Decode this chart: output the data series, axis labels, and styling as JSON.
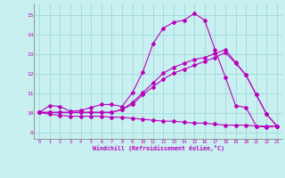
{
  "title": "",
  "xlabel": "Windchill (Refroidissement éolien,°C)",
  "ylabel": "",
  "bg_color": "#c8f0f0",
  "line_color": "#bb00bb",
  "grid_color": "#a0d8d8",
  "xlim": [
    -0.5,
    23.5
  ],
  "ylim": [
    8.7,
    15.6
  ],
  "xticks": [
    0,
    1,
    2,
    3,
    4,
    5,
    6,
    7,
    8,
    9,
    10,
    11,
    12,
    13,
    14,
    15,
    16,
    17,
    18,
    19,
    20,
    21,
    22,
    23
  ],
  "yticks": [
    9,
    10,
    11,
    12,
    13,
    14,
    15
  ],
  "line1_x": [
    0,
    1,
    2,
    3,
    4,
    5,
    6,
    7,
    8,
    9,
    10,
    11,
    12,
    13,
    14,
    15,
    16,
    17,
    18,
    19,
    20,
    21,
    22,
    23
  ],
  "line1_y": [
    10.05,
    10.4,
    10.35,
    10.1,
    10.15,
    10.3,
    10.45,
    10.45,
    10.35,
    11.05,
    12.1,
    13.55,
    14.35,
    14.65,
    14.75,
    15.1,
    14.75,
    13.25,
    11.85,
    10.4,
    10.3,
    9.35,
    9.3,
    9.35
  ],
  "line2_x": [
    0,
    1,
    2,
    3,
    4,
    5,
    6,
    7,
    8,
    9,
    10,
    11,
    12,
    13,
    14,
    15,
    16,
    17,
    18,
    19,
    20,
    21,
    22,
    23
  ],
  "line2_y": [
    10.05,
    10.05,
    10.05,
    10.05,
    10.05,
    10.05,
    10.05,
    10.05,
    10.2,
    10.55,
    11.05,
    11.55,
    12.05,
    12.35,
    12.55,
    12.75,
    12.85,
    13.05,
    13.25,
    12.6,
    11.95,
    10.95,
    9.95,
    9.35
  ],
  "line3_x": [
    0,
    1,
    2,
    3,
    4,
    5,
    6,
    7,
    8,
    9,
    10,
    11,
    12,
    13,
    14,
    15,
    16,
    17,
    18,
    19,
    20,
    21,
    22,
    23
  ],
  "line3_y": [
    10.05,
    10.05,
    10.05,
    10.05,
    10.05,
    10.05,
    10.05,
    10.05,
    10.2,
    10.45,
    10.95,
    11.35,
    11.75,
    12.05,
    12.25,
    12.45,
    12.65,
    12.85,
    13.1,
    12.55,
    11.95,
    10.95,
    9.95,
    9.35
  ],
  "line4_x": [
    0,
    1,
    2,
    3,
    4,
    5,
    6,
    7,
    8,
    9,
    10,
    11,
    12,
    13,
    14,
    15,
    16,
    17,
    18,
    19,
    20,
    21,
    22,
    23
  ],
  "line4_y": [
    10.05,
    9.95,
    9.9,
    9.85,
    9.85,
    9.85,
    9.85,
    9.8,
    9.8,
    9.75,
    9.7,
    9.65,
    9.6,
    9.6,
    9.55,
    9.5,
    9.5,
    9.45,
    9.4,
    9.4,
    9.4,
    9.35,
    9.35,
    9.35
  ]
}
